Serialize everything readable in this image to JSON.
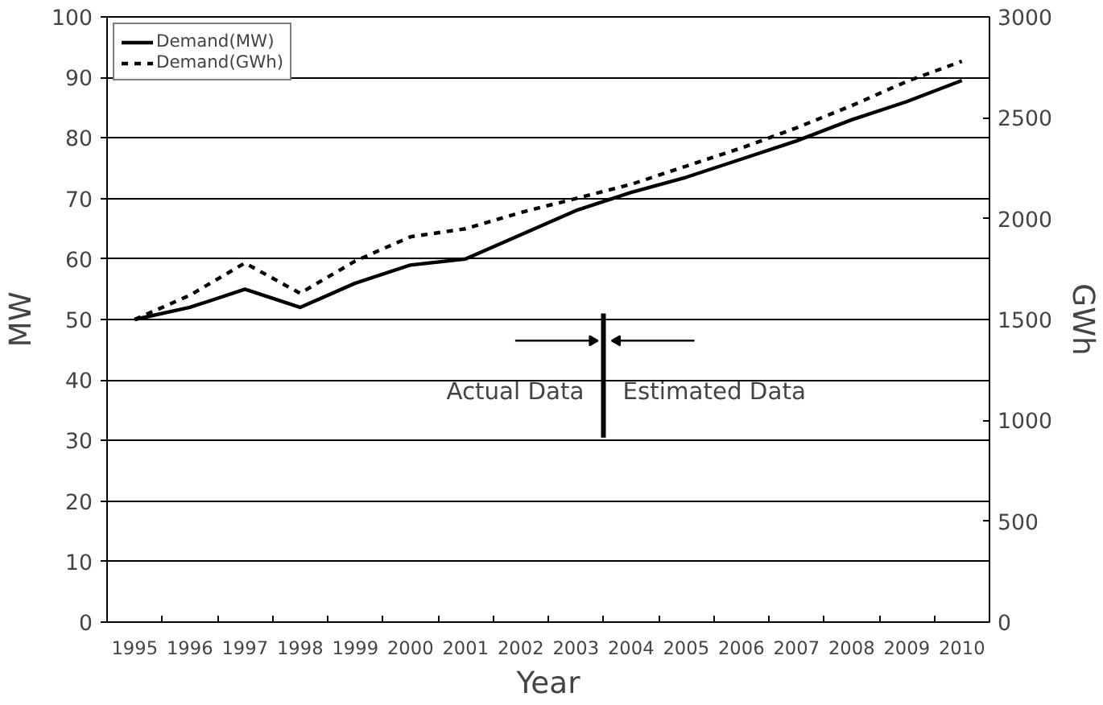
{
  "chart_data": {
    "type": "line",
    "xlabel": "Year",
    "ylabel": "MW",
    "y2label": "GWh",
    "x": [
      1995,
      1996,
      1997,
      1998,
      1999,
      2000,
      2001,
      2002,
      2003,
      2004,
      2005,
      2006,
      2007,
      2008,
      2009,
      2010
    ],
    "xlim": [
      1994.5,
      2010.5
    ],
    "xticks": [
      1995,
      1996,
      1997,
      1998,
      1999,
      2000,
      2001,
      2002,
      2003,
      2004,
      2005,
      2006,
      2007,
      2008,
      2009,
      2010
    ],
    "series": [
      {
        "name": "Demand(MW)",
        "color": "#000000",
        "line_style": "solid",
        "values": [
          50,
          52,
          55,
          52,
          56,
          59,
          60,
          64,
          68,
          71,
          73.5,
          76.5,
          79.5,
          83,
          86,
          89.5
        ]
      },
      {
        "name": "Demand(GWh)",
        "color": "#000000",
        "line_style": "dotted",
        "axis": "y2",
        "values": [
          1500,
          1620,
          1780,
          1630,
          1790,
          1910,
          1950,
          2030,
          2100,
          2170,
          2260,
          2350,
          2450,
          2560,
          2680,
          2780
        ]
      }
    ],
    "ylim": [
      0,
      100
    ],
    "yticks": [
      0,
      10,
      20,
      30,
      40,
      50,
      60,
      70,
      80,
      90,
      100
    ],
    "y2lim": [
      0,
      3000
    ],
    "y2ticks": [
      0,
      500,
      1000,
      1500,
      2000,
      2500,
      3000
    ],
    "ref_lines": [
      {
        "axis": "x",
        "value": 2003.5,
        "color": "#000000"
      }
    ],
    "grid": "y",
    "legend": "top left",
    "marker": "none",
    "annotations": [
      "Actual Data",
      "Estimated Data"
    ]
  }
}
